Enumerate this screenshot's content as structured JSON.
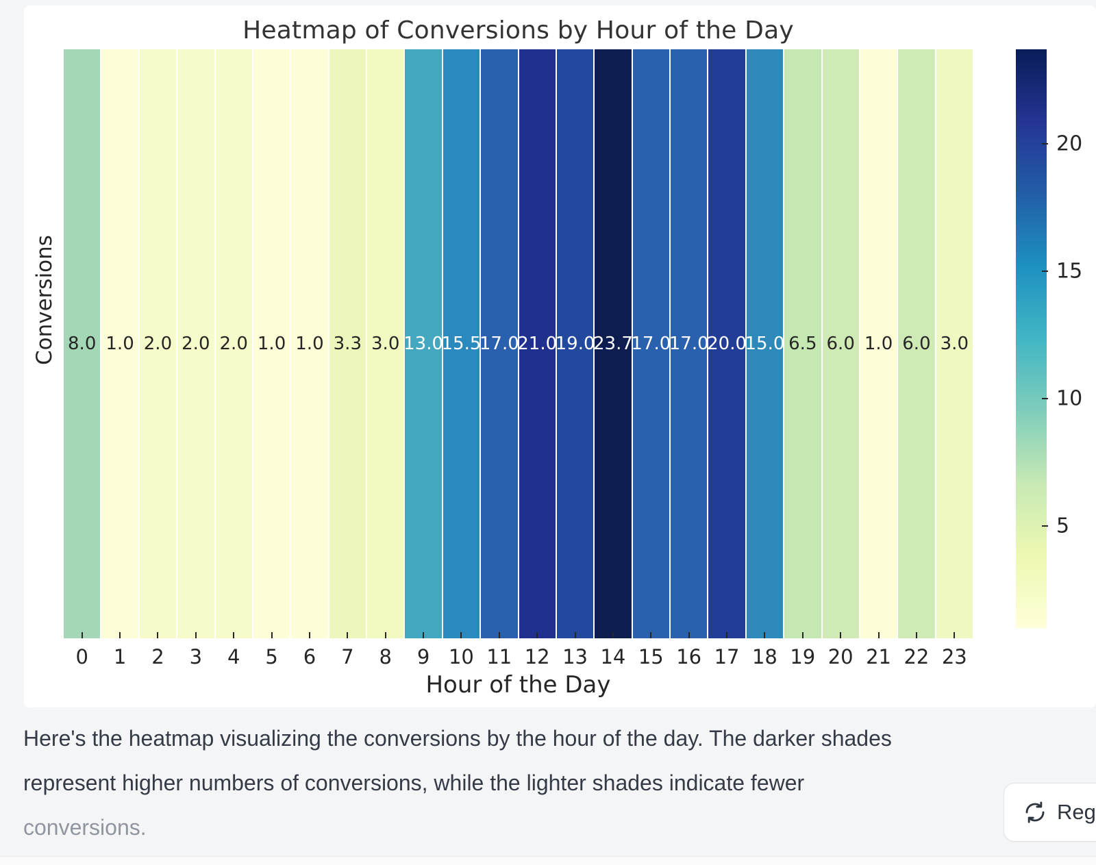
{
  "page": {
    "background_color": "#f4f5f6",
    "card_background": "#ffffff"
  },
  "chart_data": {
    "type": "heatmap",
    "title": "Heatmap of Conversions by Hour of the Day",
    "xlabel": "Hour of the Day",
    "ylabel": "Conversions",
    "x_categories": [
      "0",
      "1",
      "2",
      "3",
      "4",
      "5",
      "6",
      "7",
      "8",
      "9",
      "10",
      "11",
      "12",
      "13",
      "14",
      "15",
      "16",
      "17",
      "18",
      "19",
      "20",
      "21",
      "22",
      "23"
    ],
    "values": [
      8.0,
      1.0,
      2.0,
      2.0,
      2.0,
      1.0,
      1.0,
      3.3,
      3.0,
      13.0,
      15.5,
      17.0,
      21.0,
      19.0,
      23.7,
      17.0,
      17.0,
      20.0,
      15.0,
      6.5,
      6.0,
      1.0,
      6.0,
      3.0
    ],
    "value_labels": [
      "8.0",
      "1.0",
      "2.0",
      "2.0",
      "2.0",
      "1.0",
      "1.0",
      "3.3",
      "3.0",
      "13.0",
      "15.5",
      "17.0",
      "21.0",
      "19.0",
      "23.7",
      "17.0",
      "17.0",
      "20.0",
      "15.0",
      "6.5",
      "6.0",
      "1.0",
      "6.0",
      "3.0"
    ],
    "cell_colors": [
      "#a3d7b5",
      "#fdfdd7",
      "#f7fbc9",
      "#f7fbc9",
      "#f7fbc9",
      "#fdfdd7",
      "#fdfdd7",
      "#edf6bb",
      "#f1f8c0",
      "#43a7bf",
      "#2a8abe",
      "#2a61ae",
      "#20308f",
      "#23499e",
      "#0e1d50",
      "#2a61ae",
      "#2a61ae",
      "#223d97",
      "#2d89ba",
      "#c5e7b2",
      "#cfeab4",
      "#fdfdd7",
      "#cfeab4",
      "#f0f8c1"
    ],
    "cell_text_dark": "#262626",
    "cell_text_light": "#ffffff",
    "grid_gap_color": "#ffffff",
    "colorbar": {
      "vmin": 1.0,
      "vmax": 23.7,
      "tick_values": [
        5,
        10,
        15,
        20
      ],
      "tick_labels": [
        "5",
        "10",
        "15",
        "20"
      ],
      "colormap_name": "YlGnBu",
      "gradient_stops": [
        {
          "pos": 0.0,
          "color": "#ffffd9"
        },
        {
          "pos": 0.125,
          "color": "#edf8b1"
        },
        {
          "pos": 0.25,
          "color": "#c7e9b4"
        },
        {
          "pos": 0.375,
          "color": "#7fcdbb"
        },
        {
          "pos": 0.5,
          "color": "#41b6c4"
        },
        {
          "pos": 0.625,
          "color": "#1d91c0"
        },
        {
          "pos": 0.75,
          "color": "#225ea8"
        },
        {
          "pos": 0.875,
          "color": "#253494"
        },
        {
          "pos": 1.0,
          "color": "#081d58"
        }
      ]
    }
  },
  "message": {
    "lines": [
      {
        "text": "Here's the heatmap visualizing the conversions by the hour of the day. The darker shades",
        "muted": false
      },
      {
        "text": "represent higher numbers of conversions, while the lighter shades indicate fewer",
        "muted": false
      },
      {
        "text": "conversions.",
        "muted": true
      }
    ]
  },
  "regenerate_button": {
    "label": "Reg",
    "icon": "regenerate-icon"
  }
}
